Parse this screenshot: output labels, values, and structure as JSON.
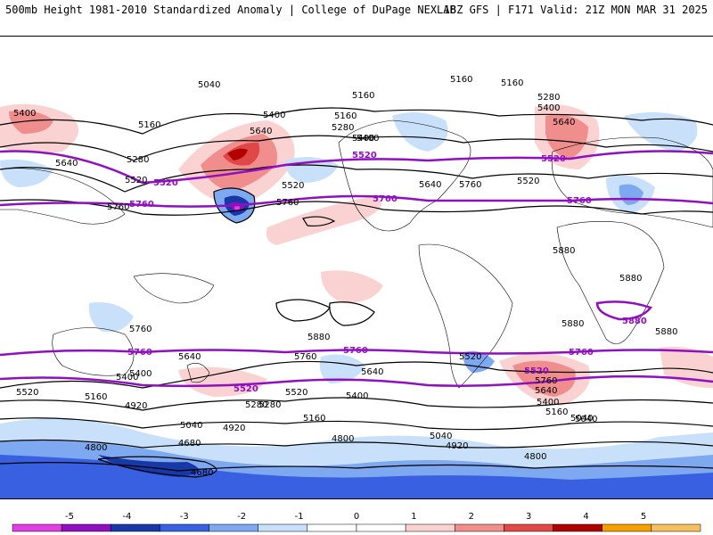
{
  "header": {
    "left": "500mb Height 1981-2010 Standardized Anomaly | College of DuPage NEXLAB",
    "right": "18Z GFS | F171 Valid: 21Z MON MAR 31 2025"
  },
  "colorbar": {
    "ticks": [
      "-5",
      "-4",
      "-3",
      "-2",
      "-1",
      "0",
      "1",
      "2",
      "3",
      "4",
      "5"
    ],
    "colors": [
      "#e040e0",
      "#9010c0",
      "#1838a8",
      "#3860e0",
      "#7ea8f0",
      "#c8e0fa",
      "#ffffff",
      "#ffffff",
      "#fad2d2",
      "#f08e8e",
      "#e04848",
      "#b00000",
      "#f5a000",
      "#f5c060"
    ]
  },
  "contours": {
    "black": [
      "5040",
      "5160",
      "5160",
      "5160",
      "5400",
      "5400",
      "5400",
      "5160",
      "5280",
      "5160",
      "5280",
      "5640",
      "5520",
      "5760",
      "5280",
      "5400",
      "5640",
      "5520",
      "5760",
      "5880",
      "5880",
      "5880",
      "5880",
      "5760",
      "5880",
      "5640",
      "5760",
      "5640",
      "5520",
      "5520",
      "5520",
      "5400",
      "5160",
      "4920",
      "5040",
      "4680",
      "4680",
      "4800",
      "4920",
      "5040",
      "5040",
      "4920",
      "4800",
      "4800",
      "5280",
      "5400",
      "5760",
      "5640",
      "5400",
      "5160",
      "5040",
      "5640",
      "5400",
      "5520",
      "5760",
      "5640",
      "5400",
      "5160",
      "5280"
    ],
    "purple": [
      "5520",
      "5760",
      "5520",
      "5760",
      "5520",
      "5760",
      "5880",
      "5760",
      "5760",
      "5520",
      "5520",
      "5760"
    ]
  }
}
